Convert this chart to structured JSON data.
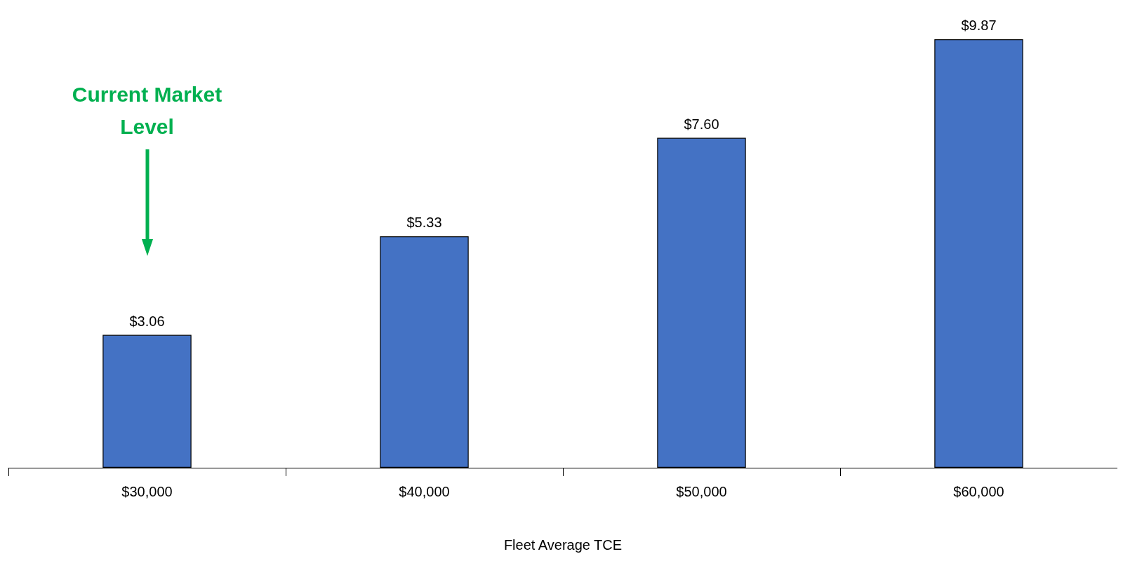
{
  "chart_data": {
    "type": "bar",
    "xlabel": "Fleet Average TCE",
    "categories": [
      "$30,000",
      "$40,000",
      "$50,000",
      "$60,000"
    ],
    "values": [
      3.06,
      5.33,
      7.6,
      9.87
    ],
    "value_labels": [
      "$3.06",
      "$5.33",
      "$7.60",
      "$9.87"
    ],
    "color": "#4472c4",
    "grid": false,
    "tick_labels": "x",
    "annotations": [
      "Current Market Level"
    ]
  }
}
